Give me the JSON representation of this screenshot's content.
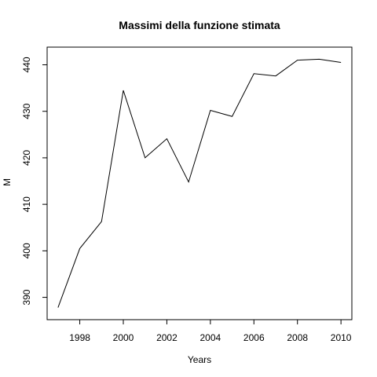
{
  "chart_data": {
    "type": "line",
    "title": "Massimi della funzione stimata",
    "xlabel": "Years",
    "ylabel": "M",
    "x": [
      1997,
      1998,
      1999,
      2000,
      2001,
      2002,
      2003,
      2004,
      2005,
      2006,
      2007,
      2008,
      2009,
      2010
    ],
    "series": [
      {
        "values": [
          387.8,
          400.5,
          406.3,
          434.5,
          420.0,
          424.1,
          414.8,
          430.2,
          428.9,
          438.1,
          437.6,
          441.0,
          441.2,
          440.5
        ]
      }
    ],
    "xlim": [
      1996.5,
      2010.5
    ],
    "ylim": [
      385.2,
      443.8
    ],
    "x_ticks": [
      1998,
      2000,
      2002,
      2004,
      2006,
      2008,
      2010
    ],
    "y_ticks": [
      390,
      400,
      410,
      420,
      430,
      440
    ],
    "grid": false,
    "line_color": "#000000"
  }
}
